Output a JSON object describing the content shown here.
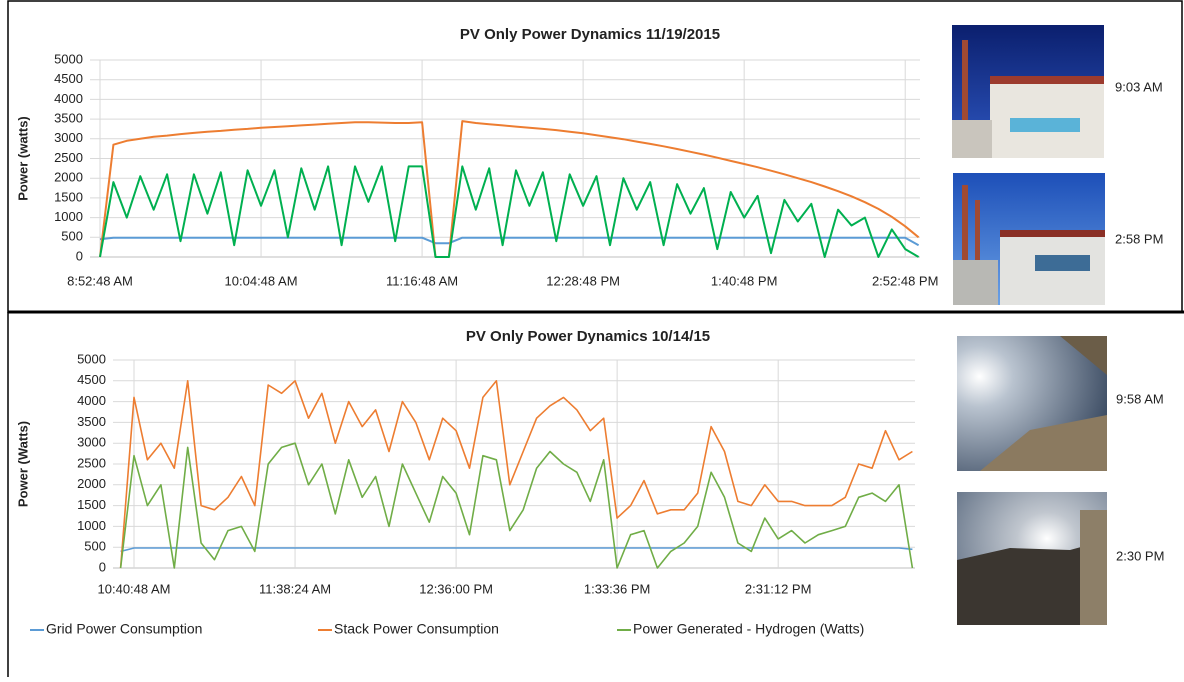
{
  "chart_data": [
    {
      "type": "line",
      "title": "PV Only Power Dynamics 11/19/2015",
      "y_label": "Power (watts)",
      "x": [
        "8:52:48 AM",
        "8:58:48 AM",
        "9:04:48 AM",
        "9:10:48 AM",
        "9:16:48 AM",
        "9:22:48 AM",
        "9:28:48 AM",
        "9:34:48 AM",
        "9:40:48 AM",
        "9:46:48 AM",
        "9:52:48 AM",
        "9:58:48 AM",
        "10:04:48 AM",
        "10:10:48 AM",
        "10:16:48 AM",
        "10:22:48 AM",
        "10:28:48 AM",
        "10:34:48 AM",
        "10:40:48 AM",
        "10:46:48 AM",
        "10:52:48 AM",
        "10:58:48 AM",
        "11:04:48 AM",
        "11:10:48 AM",
        "11:16:48 AM",
        "11:22:48 AM",
        "11:28:48 AM",
        "11:34:48 AM",
        "11:40:48 AM",
        "11:46:48 AM",
        "11:52:48 AM",
        "11:58:48 AM",
        "12:04:48 PM",
        "12:10:48 PM",
        "12:16:48 PM",
        "12:22:48 PM",
        "12:28:48 PM",
        "12:34:48 PM",
        "12:40:48 PM",
        "12:46:48 PM",
        "12:52:48 PM",
        "12:58:48 PM",
        "1:04:48 PM",
        "1:10:48 PM",
        "1:16:48 PM",
        "1:22:48 PM",
        "1:28:48 PM",
        "1:34:48 PM",
        "1:40:48 PM",
        "1:46:48 PM",
        "1:52:48 PM",
        "1:58:48 PM",
        "2:04:48 PM",
        "2:10:48 PM",
        "2:16:48 PM",
        "2:22:48 PM",
        "2:28:48 PM",
        "2:34:48 PM",
        "2:40:48 PM",
        "2:46:48 PM",
        "2:52:48 PM",
        "2:58:48 PM"
      ],
      "series": [
        {
          "color": "#5b9bd5",
          "values": [
            450,
            490,
            490,
            490,
            490,
            490,
            490,
            490,
            490,
            490,
            490,
            490,
            490,
            490,
            490,
            490,
            490,
            490,
            490,
            490,
            490,
            490,
            490,
            490,
            490,
            350,
            350,
            490,
            490,
            490,
            490,
            490,
            490,
            490,
            490,
            490,
            490,
            490,
            490,
            490,
            490,
            490,
            490,
            490,
            490,
            490,
            490,
            490,
            490,
            490,
            490,
            490,
            490,
            490,
            490,
            490,
            490,
            490,
            490,
            490,
            490,
            300
          ]
        },
        {
          "color": "#ed7d31",
          "values": [
            0,
            2850,
            2950,
            3000,
            3050,
            3080,
            3120,
            3150,
            3180,
            3200,
            3230,
            3250,
            3280,
            3300,
            3320,
            3340,
            3360,
            3380,
            3400,
            3420,
            3420,
            3410,
            3400,
            3400,
            3420,
            0,
            0,
            3450,
            3400,
            3370,
            3340,
            3310,
            3280,
            3250,
            3220,
            3180,
            3140,
            3090,
            3040,
            2990,
            2930,
            2870,
            2810,
            2740,
            2670,
            2600,
            2520,
            2440,
            2360,
            2280,
            2190,
            2100,
            2000,
            1900,
            1790,
            1670,
            1540,
            1390,
            1220,
            1020,
            780,
            500
          ]
        },
        {
          "color": "#00b050",
          "values": [
            0,
            1900,
            1000,
            2050,
            1200,
            2100,
            400,
            2100,
            1100,
            2150,
            300,
            2200,
            1300,
            2200,
            500,
            2250,
            1200,
            2300,
            300,
            2300,
            1400,
            2300,
            400,
            2300,
            2300,
            0,
            0,
            2300,
            1200,
            2250,
            300,
            2200,
            1300,
            2150,
            400,
            2100,
            1300,
            2050,
            300,
            2000,
            1200,
            1900,
            300,
            1850,
            1100,
            1750,
            200,
            1650,
            1000,
            1550,
            100,
            1450,
            900,
            1350,
            0,
            1200,
            800,
            1000,
            0,
            700,
            200,
            0
          ]
        }
      ],
      "ylim": [
        0,
        5000
      ],
      "yticks": [
        0,
        500,
        1000,
        1500,
        2000,
        2500,
        3000,
        3500,
        4000,
        4500,
        5000
      ],
      "grid": true
    },
    {
      "type": "line",
      "title": "PV Only Power Dynamics 10/14/15",
      "y_label": "Power (Watts)",
      "x": [
        "10:36:00 AM",
        "10:40:48 AM",
        "10:45:36 AM",
        "10:50:24 AM",
        "10:55:12 AM",
        "11:00:00 AM",
        "11:04:48 AM",
        "11:09:36 AM",
        "11:14:24 AM",
        "11:19:12 AM",
        "11:24:00 AM",
        "11:28:48 AM",
        "11:33:36 AM",
        "11:38:24 AM",
        "11:43:12 AM",
        "11:48:00 AM",
        "11:52:48 AM",
        "11:57:36 AM",
        "12:02:24 PM",
        "12:07:12 PM",
        "12:12:00 PM",
        "12:16:48 PM",
        "12:21:36 PM",
        "12:26:24 PM",
        "12:31:12 PM",
        "12:36:00 PM",
        "12:40:48 PM",
        "12:45:36 PM",
        "12:50:24 PM",
        "12:55:12 PM",
        "1:00:00 PM",
        "1:04:48 PM",
        "1:09:36 PM",
        "1:14:24 PM",
        "1:19:12 PM",
        "1:24:00 PM",
        "1:28:48 PM",
        "1:33:36 PM",
        "1:38:24 PM",
        "1:43:12 PM",
        "1:48:00 PM",
        "1:52:48 PM",
        "1:57:36 PM",
        "2:02:24 PM",
        "2:07:12 PM",
        "2:12:00 PM",
        "2:16:48 PM",
        "2:21:36 PM",
        "2:26:24 PM",
        "2:31:12 PM",
        "2:36:00 PM",
        "2:40:48 PM",
        "2:45:36 PM",
        "2:50:24 PM",
        "2:55:12 PM",
        "3:00:00 PM",
        "3:04:48 PM",
        "3:09:36 PM",
        "3:14:24 PM",
        "3:19:12 PM"
      ],
      "series": [
        {
          "name": "Grid Power Consumption",
          "color": "#5b9bd5",
          "values": [
            400,
            480,
            480,
            480,
            480,
            480,
            480,
            480,
            480,
            480,
            480,
            480,
            480,
            480,
            480,
            480,
            480,
            480,
            480,
            480,
            480,
            480,
            480,
            480,
            480,
            480,
            480,
            480,
            480,
            480,
            480,
            480,
            480,
            480,
            480,
            480,
            480,
            480,
            480,
            480,
            480,
            480,
            480,
            480,
            480,
            480,
            480,
            480,
            480,
            480,
            480,
            480,
            480,
            480,
            480,
            480,
            480,
            480,
            480,
            450
          ]
        },
        {
          "name": "Stack Power Consumption",
          "color": "#ed7d31",
          "values": [
            0,
            4100,
            2600,
            3000,
            2400,
            4500,
            1500,
            1400,
            1700,
            2200,
            1500,
            4400,
            4200,
            4500,
            3600,
            4200,
            3000,
            4000,
            3400,
            3800,
            2800,
            4000,
            3500,
            2600,
            3600,
            3300,
            2400,
            4100,
            4500,
            2000,
            2800,
            3600,
            3900,
            4100,
            3800,
            3300,
            3600,
            1200,
            1500,
            2100,
            1300,
            1400,
            1400,
            1800,
            3400,
            2800,
            1600,
            1500,
            2000,
            1600,
            1600,
            1500,
            1500,
            1500,
            1700,
            2500,
            2400,
            3300,
            2600,
            2800
          ]
        },
        {
          "name": "Power Generated - Hydrogen (Watts)",
          "color": "#70ad47",
          "values": [
            0,
            2700,
            1500,
            2000,
            0,
            2900,
            600,
            200,
            900,
            1000,
            400,
            2500,
            2900,
            3000,
            2000,
            2500,
            1300,
            2600,
            1700,
            2200,
            1000,
            2500,
            1800,
            1100,
            2200,
            1800,
            800,
            2700,
            2600,
            900,
            1400,
            2400,
            2800,
            2500,
            2300,
            1600,
            2600,
            0,
            800,
            900,
            0,
            400,
            600,
            1000,
            2300,
            1700,
            600,
            400,
            1200,
            700,
            900,
            600,
            800,
            900,
            1000,
            1700,
            1800,
            1600,
            2000,
            0
          ]
        }
      ],
      "ylim": [
        0,
        5000
      ],
      "yticks": [
        0,
        500,
        1000,
        1500,
        2000,
        2500,
        3000,
        3500,
        4000,
        4500,
        5000
      ],
      "grid": true
    }
  ],
  "photos": [
    {
      "time": "9:03 AM"
    },
    {
      "time": "2:58 PM"
    },
    {
      "time": "9:58 AM"
    },
    {
      "time": "2:30 PM"
    }
  ]
}
